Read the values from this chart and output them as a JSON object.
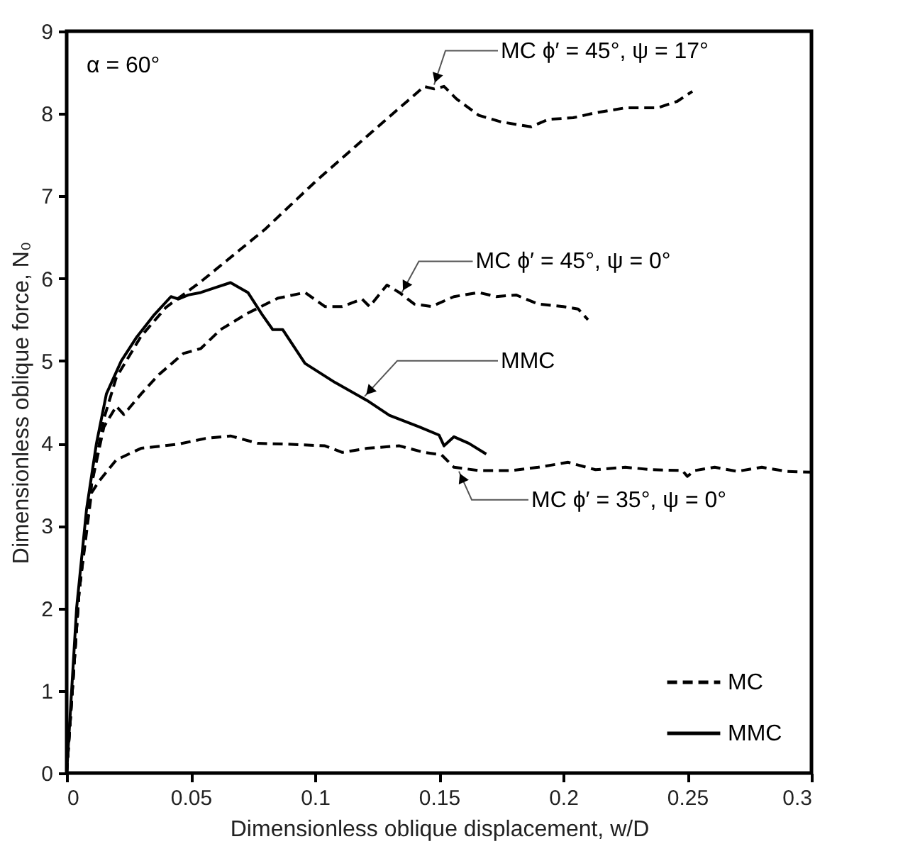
{
  "chart_data": {
    "type": "line",
    "xlabel": "Dimensionless oblique displacement, w/D",
    "ylabel": "Dimensionless oblique force, N₀",
    "xlim": [
      0,
      0.3
    ],
    "xticks": [
      0,
      0.05,
      0.1,
      0.15,
      0.2,
      0.25,
      0.3
    ],
    "ylim": [
      0,
      9
    ],
    "yticks": [
      0,
      1,
      2,
      3,
      4,
      5,
      6,
      7,
      8,
      9
    ],
    "grid": false,
    "legend": "bottom right",
    "marker": "none",
    "series": [
      {
        "name": "MC",
        "color": "#000000",
        "line_style": "dashed",
        "x": [
          0,
          0.005,
          0.01,
          0.015,
          0.02,
          0.03,
          0.04,
          0.054,
          0.08,
          0.1,
          0.12,
          0.144,
          0.148,
          0.152,
          0.157,
          0.166,
          0.175,
          0.187,
          0.194,
          0.204,
          0.213,
          0.225,
          0.238,
          0.246,
          0.252
        ],
        "values": [
          0,
          2.2,
          3.5,
          4.3,
          4.8,
          5.3,
          5.65,
          5.96,
          6.6,
          7.17,
          7.7,
          8.33,
          8.3,
          8.33,
          8.18,
          7.98,
          7.9,
          7.84,
          7.93,
          7.95,
          8.01,
          8.07,
          8.07,
          8.15,
          8.27
        ]
      },
      {
        "color": "#000000",
        "line_style": "dashed",
        "x": [
          0,
          0.005,
          0.01,
          0.015,
          0.02,
          0.023,
          0.03,
          0.037,
          0.047,
          0.054,
          0.062,
          0.073,
          0.085,
          0.096,
          0.104,
          0.111,
          0.119,
          0.122,
          0.129,
          0.134,
          0.14,
          0.147,
          0.156,
          0.166,
          0.173,
          0.181,
          0.19,
          0.2,
          0.206,
          0.21
        ],
        "values": [
          0,
          2.2,
          3.5,
          4.2,
          4.45,
          4.35,
          4.6,
          4.83,
          5.09,
          5.15,
          5.38,
          5.58,
          5.76,
          5.83,
          5.66,
          5.66,
          5.75,
          5.66,
          5.92,
          5.83,
          5.69,
          5.66,
          5.78,
          5.83,
          5.78,
          5.8,
          5.69,
          5.66,
          5.63,
          5.5
        ]
      },
      {
        "color": "#000000",
        "line_style": "dashed",
        "x": [
          0,
          0.005,
          0.01,
          0.013,
          0.02,
          0.03,
          0.045,
          0.056,
          0.066,
          0.077,
          0.089,
          0.104,
          0.111,
          0.121,
          0.134,
          0.144,
          0.151,
          0.156,
          0.166,
          0.179,
          0.19,
          0.202,
          0.213,
          0.225,
          0.236,
          0.248,
          0.25,
          0.253,
          0.261,
          0.27,
          0.28,
          0.29,
          0.3
        ],
        "values": [
          0,
          2.2,
          3.4,
          3.54,
          3.8,
          3.94,
          3.99,
          4.06,
          4.09,
          4.0,
          3.99,
          3.97,
          3.89,
          3.94,
          3.97,
          3.89,
          3.86,
          3.71,
          3.67,
          3.67,
          3.71,
          3.77,
          3.68,
          3.71,
          3.68,
          3.67,
          3.6,
          3.67,
          3.71,
          3.66,
          3.71,
          3.66,
          3.65
        ]
      },
      {
        "name": "MMC",
        "color": "#000000",
        "line_style": "solid",
        "x": [
          0,
          0.004,
          0.008,
          0.012,
          0.016,
          0.022,
          0.028,
          0.035,
          0.042,
          0.045,
          0.049,
          0.054,
          0.06,
          0.066,
          0.073,
          0.079,
          0.083,
          0.087,
          0.096,
          0.108,
          0.121,
          0.13,
          0.142,
          0.15,
          0.152,
          0.156,
          0.162,
          0.169
        ],
        "values": [
          0,
          2.0,
          3.2,
          4.0,
          4.6,
          5.0,
          5.28,
          5.55,
          5.78,
          5.75,
          5.8,
          5.83,
          5.89,
          5.95,
          5.83,
          5.55,
          5.38,
          5.38,
          4.97,
          4.74,
          4.52,
          4.34,
          4.2,
          4.1,
          3.97,
          4.08,
          4.0,
          3.87
        ]
      }
    ],
    "annotations": [
      "α = 60°",
      {
        "text": "MC ϕ′ = 45°, ψ = 17°",
        "x": 0.148,
        "y": 8.35
      },
      {
        "text": "MC ϕ′ = 45°, ψ = 0°",
        "x": 0.135,
        "y": 5.83
      },
      {
        "text": "MMC",
        "x": 0.12,
        "y": 4.57
      },
      {
        "text": "MC ϕ′ = 35°, ψ = 0°",
        "x": 0.158,
        "y": 3.66
      }
    ]
  }
}
